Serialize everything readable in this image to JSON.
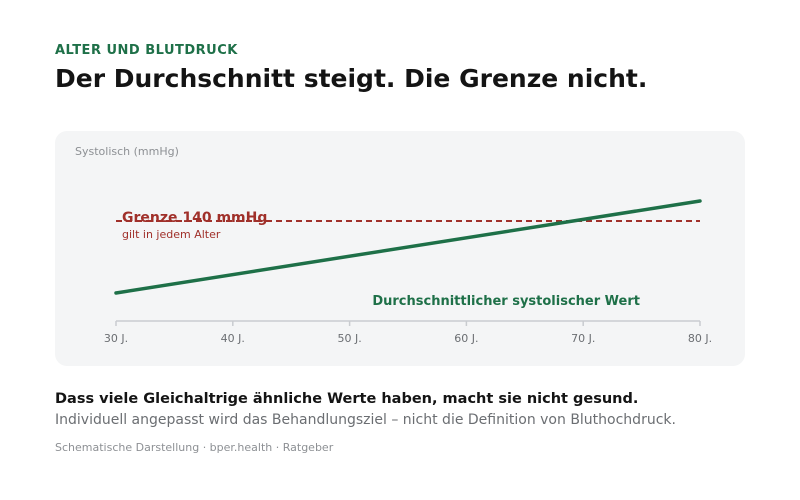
{
  "header": {
    "kicker": "ALTER UND BLUTDRUCK",
    "title": "Der Durchschnitt steigt. Die Grenze nicht."
  },
  "chart_data": {
    "type": "line",
    "ylabel": "Systolisch (mmHg)",
    "xlabel": "",
    "x_ticks": [
      30,
      40,
      50,
      60,
      70,
      80
    ],
    "x_tick_labels": [
      "30 J.",
      "40 J.",
      "50 J.",
      "60 J.",
      "70 J.",
      "80 J."
    ],
    "xlim": [
      30,
      80
    ],
    "ylim": [
      115,
      155
    ],
    "series": [
      {
        "name": "Durchschnittlicher systolischer Wert",
        "color": "#1e7048",
        "x": [
          30,
          80
        ],
        "y": [
          122,
          145
        ]
      }
    ],
    "threshold": {
      "value": 140,
      "label": "Grenze 140 mmHg",
      "sublabel": "gilt in jedem Alter",
      "color": "#a0302a"
    },
    "grid": false
  },
  "footer": {
    "takeaway": "Dass viele Gleichaltrige ähnliche Werte haben, macht sie nicht gesund.",
    "subtext": "Individuell angepasst wird das Behandlungsziel – nicht die Definition von Bluthochdruck.",
    "source": "Schematische Darstellung · bper.health · Ratgeber"
  }
}
